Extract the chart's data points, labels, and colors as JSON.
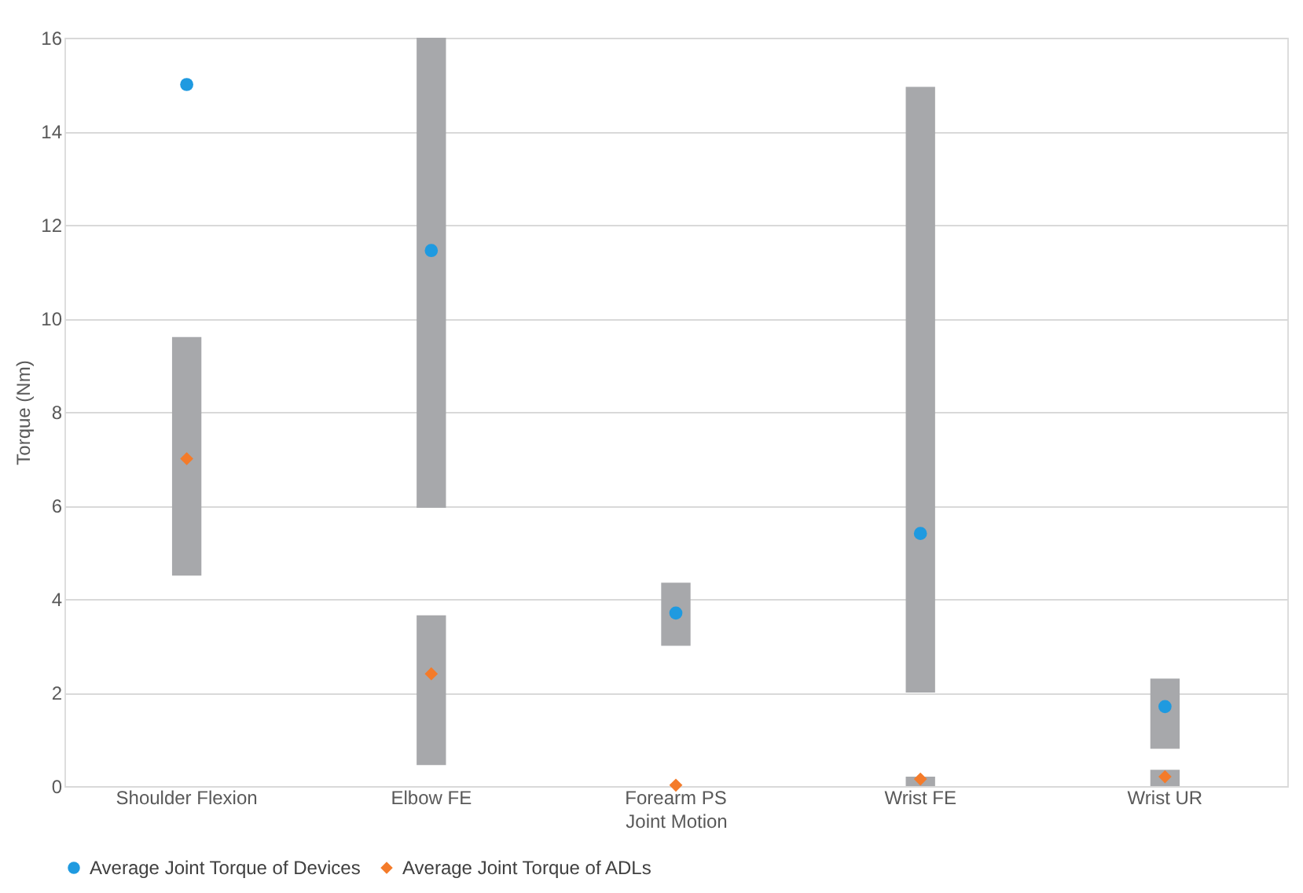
{
  "chart_data": {
    "type": "bar",
    "xlabel": "Joint Motion",
    "ylabel": "Torque (Nm)",
    "categories": [
      "Shoulder Flexion",
      "Elbow FE",
      "Forearm PS",
      "Wrist FE",
      "Wrist UR"
    ],
    "series": [
      {
        "color": "#a7a8ab",
        "values": [
          null,
          10.05,
          1.35,
          12.95,
          1.5
        ],
        "base": [
          null,
          5.95,
          3.0,
          2.0,
          0.8
        ]
      },
      {
        "color": "#a7a8ab",
        "values": [
          5.1,
          3.2,
          null,
          0.2,
          0.35
        ],
        "base": [
          4.5,
          0.45,
          null,
          0.0,
          0.0
        ]
      },
      {
        "type": "scatter",
        "name": "Average Joint Torque of Devices",
        "color": "#1f9ae0",
        "marker": "circle",
        "values": [
          15.0,
          11.45,
          3.7,
          5.4,
          1.7
        ]
      },
      {
        "type": "scatter",
        "name": "Average Joint Torque of ADLs",
        "color": "#f47b2a",
        "marker": "diamond",
        "values": [
          7.0,
          2.4,
          0.02,
          0.15,
          0.2
        ]
      }
    ],
    "ylim": [
      0,
      16
    ],
    "yticks": [
      0,
      2,
      4,
      6,
      8,
      10,
      12,
      14,
      16
    ],
    "grid": "y",
    "legend": "bottom"
  }
}
